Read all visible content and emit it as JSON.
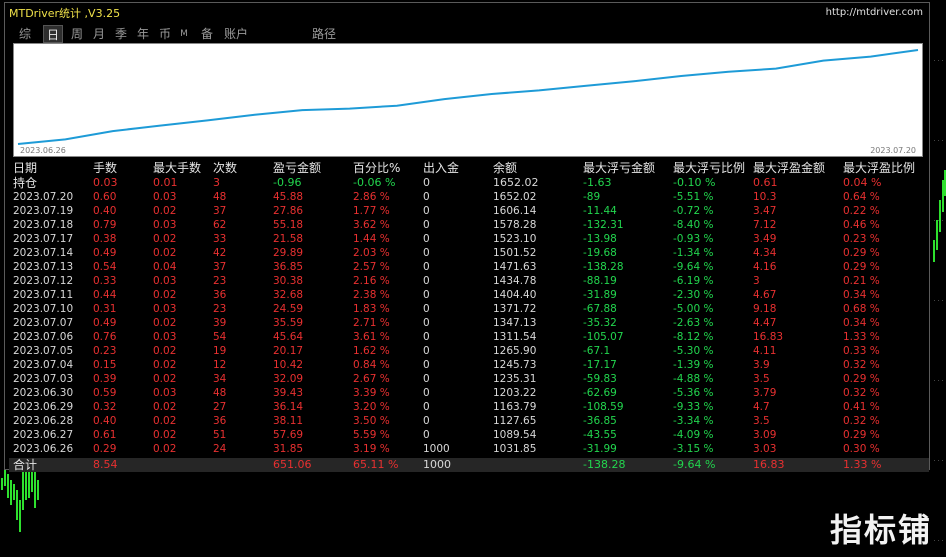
{
  "window": {
    "title": "MTDriver统计 ,V3.25",
    "url": "http://mtdriver.com"
  },
  "tabs": [
    {
      "label": "综",
      "active": false
    },
    {
      "label": "日",
      "active": true
    },
    {
      "label": "周",
      "active": false
    },
    {
      "label": "月",
      "active": false
    },
    {
      "label": "季",
      "active": false
    },
    {
      "label": "年",
      "active": false
    },
    {
      "label": "币",
      "active": false
    },
    {
      "label": "M",
      "active": false
    },
    {
      "label": "备",
      "active": false
    },
    {
      "label": "账户",
      "active": false
    },
    {
      "label": "路径",
      "active": false
    }
  ],
  "equity_chart": {
    "start_label": "2023.06.26",
    "end_label": "2023.07.20",
    "line_color": "#1e9bd7"
  },
  "table": {
    "headers": [
      "日期",
      "手数",
      "最大手数",
      "次数",
      "盈亏金额",
      "百分比%",
      "出入金",
      "余额",
      "最大浮亏金额",
      "最大浮亏比例",
      "最大浮盈金额",
      "最大浮盈比例"
    ],
    "holding": [
      "持仓",
      "0.03",
      "0.01",
      "3",
      "-0.96",
      "-0.06 %",
      "0",
      "1652.02",
      "-1.63",
      "-0.10 %",
      "0.61",
      "0.04 %"
    ],
    "rows": [
      [
        "2023.07.20",
        "0.60",
        "0.03",
        "48",
        "45.88",
        "2.86 %",
        "0",
        "1652.02",
        "-89",
        "-5.51 %",
        "10.3",
        "0.64 %"
      ],
      [
        "2023.07.19",
        "0.40",
        "0.02",
        "37",
        "27.86",
        "1.77 %",
        "0",
        "1606.14",
        "-11.44",
        "-0.72 %",
        "3.47",
        "0.22 %"
      ],
      [
        "2023.07.18",
        "0.79",
        "0.03",
        "62",
        "55.18",
        "3.62 %",
        "0",
        "1578.28",
        "-132.31",
        "-8.40 %",
        "7.12",
        "0.46 %"
      ],
      [
        "2023.07.17",
        "0.38",
        "0.02",
        "33",
        "21.58",
        "1.44 %",
        "0",
        "1523.10",
        "-13.98",
        "-0.93 %",
        "3.49",
        "0.23 %"
      ],
      [
        "2023.07.14",
        "0.49",
        "0.02",
        "42",
        "29.89",
        "2.03 %",
        "0",
        "1501.52",
        "-19.68",
        "-1.34 %",
        "4.34",
        "0.29 %"
      ],
      [
        "2023.07.13",
        "0.54",
        "0.04",
        "37",
        "36.85",
        "2.57 %",
        "0",
        "1471.63",
        "-138.28",
        "-9.64 %",
        "4.16",
        "0.29 %"
      ],
      [
        "2023.07.12",
        "0.33",
        "0.03",
        "23",
        "30.38",
        "2.16 %",
        "0",
        "1434.78",
        "-88.19",
        "-6.19 %",
        "3",
        "0.21 %"
      ],
      [
        "2023.07.11",
        "0.44",
        "0.02",
        "36",
        "32.68",
        "2.38 %",
        "0",
        "1404.40",
        "-31.89",
        "-2.30 %",
        "4.67",
        "0.34 %"
      ],
      [
        "2023.07.10",
        "0.31",
        "0.03",
        "23",
        "24.59",
        "1.83 %",
        "0",
        "1371.72",
        "-67.88",
        "-5.00 %",
        "9.18",
        "0.68 %"
      ],
      [
        "2023.07.07",
        "0.49",
        "0.02",
        "39",
        "35.59",
        "2.71 %",
        "0",
        "1347.13",
        "-35.32",
        "-2.63 %",
        "4.47",
        "0.34 %"
      ],
      [
        "2023.07.06",
        "0.76",
        "0.03",
        "54",
        "45.64",
        "3.61 %",
        "0",
        "1311.54",
        "-105.07",
        "-8.12 %",
        "16.83",
        "1.33 %"
      ],
      [
        "2023.07.05",
        "0.23",
        "0.02",
        "19",
        "20.17",
        "1.62 %",
        "0",
        "1265.90",
        "-67.1",
        "-5.30 %",
        "4.11",
        "0.33 %"
      ],
      [
        "2023.07.04",
        "0.15",
        "0.02",
        "12",
        "10.42",
        "0.84 %",
        "0",
        "1245.73",
        "-17.17",
        "-1.39 %",
        "3.9",
        "0.32 %"
      ],
      [
        "2023.07.03",
        "0.39",
        "0.02",
        "34",
        "32.09",
        "2.67 %",
        "0",
        "1235.31",
        "-59.83",
        "-4.88 %",
        "3.5",
        "0.29 %"
      ],
      [
        "2023.06.30",
        "0.59",
        "0.03",
        "48",
        "39.43",
        "3.39 %",
        "0",
        "1203.22",
        "-62.69",
        "-5.36 %",
        "3.79",
        "0.32 %"
      ],
      [
        "2023.06.29",
        "0.32",
        "0.02",
        "27",
        "36.14",
        "3.20 %",
        "0",
        "1163.79",
        "-108.59",
        "-9.33 %",
        "4.7",
        "0.41 %"
      ],
      [
        "2023.06.28",
        "0.40",
        "0.02",
        "36",
        "38.11",
        "3.50 %",
        "0",
        "1127.65",
        "-36.85",
        "-3.34 %",
        "3.5",
        "0.32 %"
      ],
      [
        "2023.06.27",
        "0.61",
        "0.02",
        "51",
        "57.69",
        "5.59 %",
        "0",
        "1089.54",
        "-43.55",
        "-4.09 %",
        "3.09",
        "0.29 %"
      ],
      [
        "2023.06.26",
        "0.29",
        "0.02",
        "24",
        "31.85",
        "3.19 %",
        "1000",
        "1031.85",
        "-31.99",
        "-3.15 %",
        "3.03",
        "0.30 %"
      ]
    ],
    "total": [
      "合计",
      "8.54",
      "",
      "",
      "651.06",
      "65.11 %",
      "1000",
      "",
      "-138.28",
      "-9.64 %",
      "16.83",
      "1.33 %"
    ]
  },
  "watermark": "指标铺",
  "colors": {
    "positive": "#e83030",
    "negative": "#22d64e",
    "title": "#f0e24a"
  }
}
